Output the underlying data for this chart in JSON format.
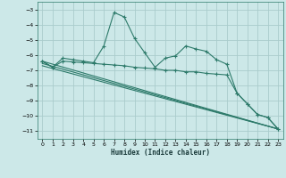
{
  "xlabel": "Humidex (Indice chaleur)",
  "background_color": "#cce8e8",
  "grid_color": "#aacccc",
  "line_color": "#2d7a6a",
  "xlim": [
    -0.5,
    23.5
  ],
  "ylim": [
    -11.5,
    -2.5
  ],
  "yticks": [
    -11,
    -10,
    -9,
    -8,
    -7,
    -6,
    -5,
    -4,
    -3
  ],
  "xticks": [
    0,
    1,
    2,
    3,
    4,
    5,
    6,
    7,
    8,
    9,
    10,
    11,
    12,
    13,
    14,
    15,
    16,
    17,
    18,
    19,
    20,
    21,
    22,
    23
  ],
  "series1_x": [
    0,
    1,
    2,
    3,
    4,
    5,
    6,
    7,
    8,
    9,
    10,
    11,
    12,
    13,
    14,
    15,
    16,
    17,
    18,
    19,
    20,
    21,
    22,
    23
  ],
  "series1_y": [
    -6.4,
    -6.8,
    -6.2,
    -6.3,
    -6.4,
    -6.5,
    -5.4,
    -3.2,
    -3.5,
    -4.9,
    -5.85,
    -6.8,
    -6.2,
    -6.05,
    -5.4,
    -5.6,
    -5.75,
    -6.3,
    -6.6,
    -8.5,
    -9.2,
    -9.9,
    -10.1,
    -10.85
  ],
  "series2_x": [
    0,
    1,
    2,
    3,
    4,
    5,
    6,
    7,
    8,
    9,
    10,
    11,
    12,
    13,
    14,
    15,
    16,
    17,
    18,
    19,
    20,
    21,
    22,
    23
  ],
  "series2_y": [
    -6.4,
    -6.8,
    -6.4,
    -6.45,
    -6.5,
    -6.55,
    -6.6,
    -6.65,
    -6.7,
    -6.8,
    -6.85,
    -6.9,
    -7.0,
    -7.0,
    -7.1,
    -7.1,
    -7.2,
    -7.25,
    -7.3,
    -8.5,
    -9.2,
    -9.9,
    -10.1,
    -10.85
  ],
  "line3_x": [
    0,
    23
  ],
  "line3_y": [
    -6.4,
    -10.85
  ],
  "line4_x": [
    0,
    23
  ],
  "line4_y": [
    -6.55,
    -10.85
  ],
  "line5_x": [
    0,
    23
  ],
  "line5_y": [
    -6.7,
    -10.85
  ]
}
